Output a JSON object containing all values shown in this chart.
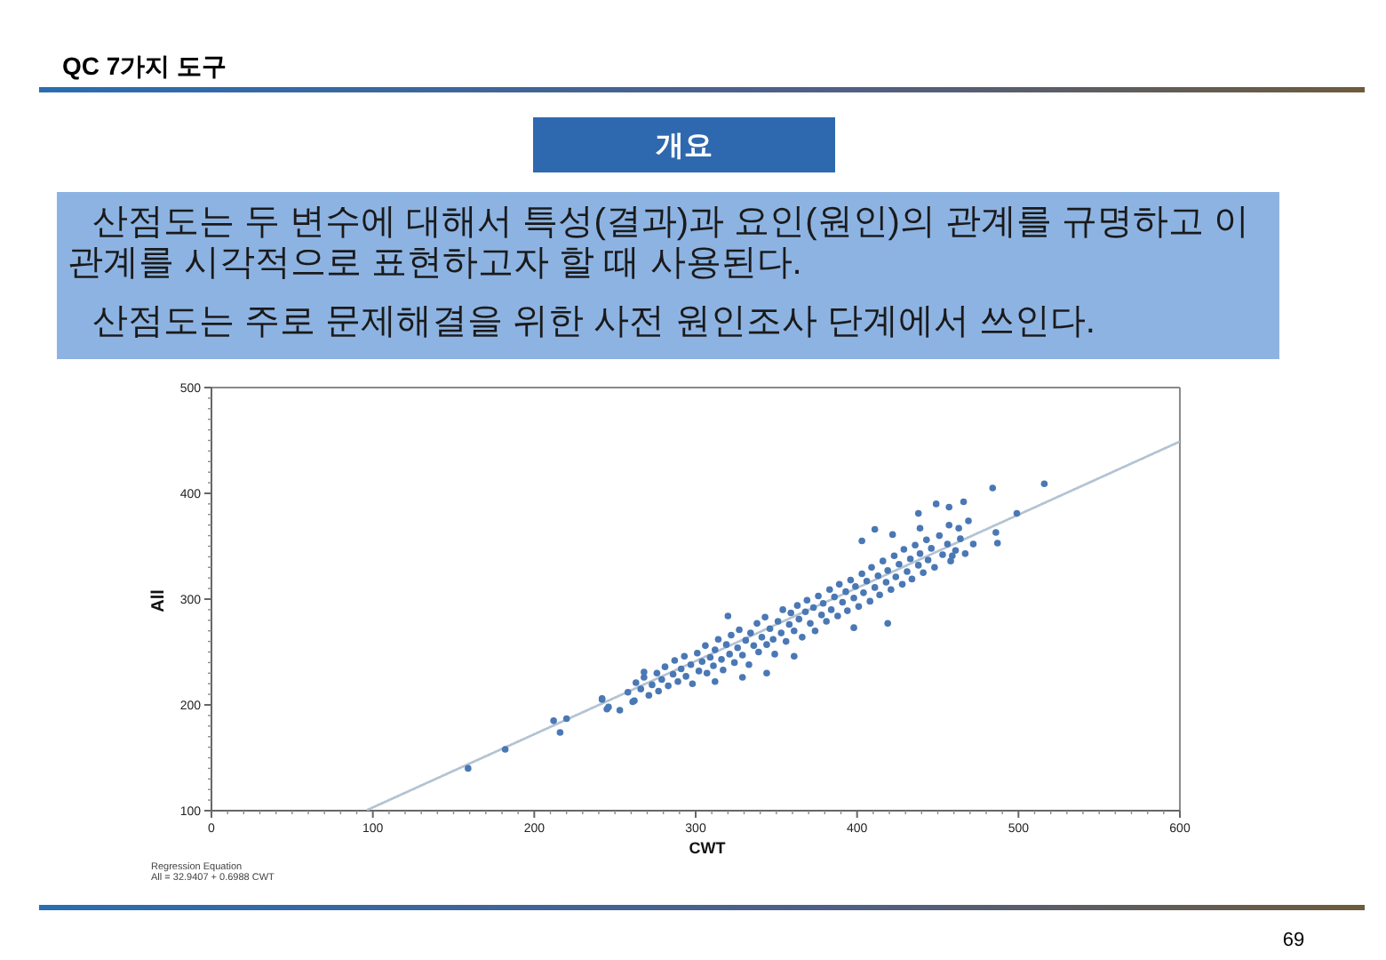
{
  "chart_data": {
    "type": "scatter",
    "title": "QC 7가지 도구",
    "subtitle": "개요",
    "xlabel": "CWT",
    "ylabel": "All",
    "annotations": [
      "산점도는 두 변수에 대해서 특성(결과)과 요인(원인)의 관계를 규명하고 이 관계를 시각적으로 표현하고자 할 때 사용된다.",
      "산점도는 주로 문제해결을 위한 사전 원인조사 단계에서 쓰인다.",
      "Regression Equation",
      "All = 32.9407 + 0.6988 CWT",
      "69"
    ],
    "xlim": [
      0,
      600
    ],
    "xticks": [
      0,
      100,
      200,
      300,
      400,
      500,
      600
    ],
    "ylim": [
      100,
      500
    ],
    "yticks": [
      100,
      200,
      300,
      400,
      500
    ],
    "series": [
      {
        "color": "#4a78b5",
        "marker": "circle",
        "x": [
          258,
          262,
          263,
          266,
          268,
          271,
          273,
          276,
          277,
          279,
          281,
          283,
          286,
          287,
          289,
          291,
          293,
          294,
          297,
          298,
          301,
          302,
          304,
          306,
          307,
          309,
          311,
          312,
          314,
          316,
          317,
          319,
          321,
          322,
          324,
          326,
          327,
          329,
          331,
          333,
          334,
          336,
          338,
          339,
          341,
          343,
          344,
          346,
          348,
          349,
          351,
          353,
          354,
          356,
          358,
          359,
          361,
          363,
          364,
          366,
          368,
          369,
          371,
          373,
          374,
          376,
          378,
          379,
          381,
          383,
          384,
          386,
          388,
          389,
          391,
          393,
          394,
          396,
          398,
          399,
          401,
          403,
          404,
          406,
          408,
          409,
          411,
          413,
          414,
          416,
          418,
          419,
          421,
          423,
          424,
          426,
          428,
          429,
          431,
          433,
          434,
          436,
          438,
          439,
          441,
          443,
          444,
          446,
          448,
          451,
          453,
          456,
          458,
          461,
          464,
          467,
          159,
          182,
          212,
          216,
          220,
          242,
          245,
          242,
          246,
          253,
          261,
          268,
          312,
          320,
          329,
          344,
          361,
          398,
          403,
          411,
          419,
          422,
          438,
          439,
          449,
          457,
          457,
          459,
          463,
          466,
          469,
          472,
          484,
          486,
          487,
          499,
          516
        ],
        "values": [
          212,
          204,
          221,
          215,
          226,
          209,
          219,
          230,
          213,
          224,
          236,
          218,
          229,
          242,
          222,
          234,
          246,
          227,
          238,
          220,
          249,
          232,
          241,
          256,
          230,
          245,
          237,
          252,
          262,
          243,
          233,
          257,
          248,
          266,
          240,
          254,
          271,
          247,
          261,
          238,
          268,
          256,
          277,
          250,
          264,
          283,
          257,
          272,
          262,
          248,
          279,
          268,
          290,
          260,
          276,
          287,
          270,
          294,
          281,
          264,
          288,
          299,
          277,
          292,
          270,
          303,
          285,
          296,
          279,
          309,
          290,
          302,
          284,
          314,
          297,
          307,
          289,
          318,
          301,
          312,
          293,
          324,
          306,
          317,
          298,
          330,
          311,
          322,
          304,
          336,
          316,
          327,
          309,
          341,
          321,
          333,
          314,
          347,
          326,
          338,
          319,
          351,
          332,
          343,
          325,
          356,
          337,
          348,
          330,
          360,
          342,
          352,
          336,
          346,
          357,
          343,
          140,
          158,
          185,
          174,
          187,
          205,
          196,
          206,
          198,
          195,
          203,
          231,
          222,
          284,
          226,
          230,
          246,
          273,
          355,
          366,
          277,
          361,
          381,
          367,
          390,
          387,
          370,
          341,
          367,
          392,
          374,
          352,
          405,
          363,
          353,
          381,
          409
        ]
      },
      {
        "type": "line",
        "color": "#b3c3d3",
        "marker": "none",
        "line_style": "dotted",
        "x": [
          97,
          600
        ],
        "values": [
          101,
          449
        ]
      }
    ]
  }
}
